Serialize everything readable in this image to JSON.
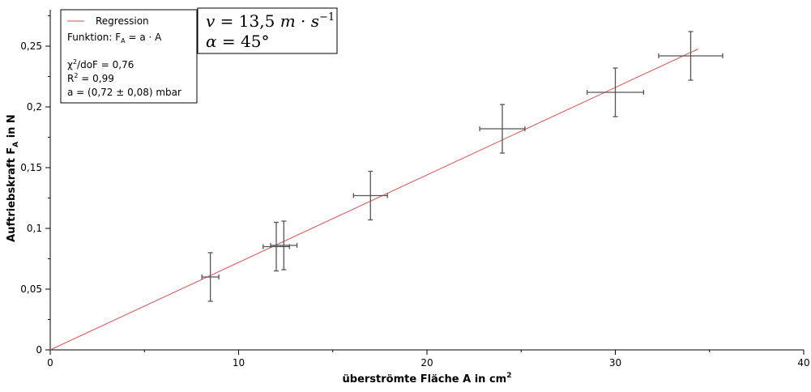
{
  "chart_data": {
    "type": "scatter",
    "xlabel_main": "überströmte Fläche A in cm",
    "xlabel_sup": "2",
    "ylabel_main": "Auftriebskraft F",
    "ylabel_sub": "A",
    "ylabel_tail": " in N",
    "xlim": [
      0,
      40
    ],
    "ylim": [
      0,
      0.28
    ],
    "x_ticks": [
      0,
      10,
      20,
      30,
      40
    ],
    "x_tick_labels": [
      "0",
      "10",
      "20",
      "30",
      "40"
    ],
    "y_ticks": [
      0,
      0.05,
      0.1,
      0.15,
      0.2,
      0.25
    ],
    "y_tick_labels": [
      "0",
      "0,05",
      "0,1",
      "0,15",
      "0,2",
      "0,25"
    ],
    "grid": false,
    "legend_placement": "top-left",
    "points": [
      {
        "x": 8.5,
        "y": 0.06,
        "xerr": 0.45,
        "yerr": 0.02
      },
      {
        "x": 12.0,
        "y": 0.085,
        "xerr": 0.7,
        "yerr": 0.02
      },
      {
        "x": 12.4,
        "y": 0.086,
        "xerr": 0.7,
        "yerr": 0.02
      },
      {
        "x": 17.0,
        "y": 0.127,
        "xerr": 0.9,
        "yerr": 0.02
      },
      {
        "x": 24.0,
        "y": 0.182,
        "xerr": 1.2,
        "yerr": 0.02
      },
      {
        "x": 30.0,
        "y": 0.212,
        "xerr": 1.5,
        "yerr": 0.02
      },
      {
        "x": 34.0,
        "y": 0.242,
        "xerr": 1.7,
        "yerr": 0.02
      }
    ],
    "regression": {
      "slope": 0.0072,
      "x_start": 0,
      "x_end": 34.4
    },
    "colors": {
      "points": "#555555",
      "regression": "#d9534f",
      "axes": "#000000"
    }
  },
  "legend": {
    "series_label": "Regression",
    "function_prefix": "Funktion: F",
    "function_sub": "A",
    "function_suffix": " = a · A",
    "chi_prefix": "χ",
    "chi_sup": "2",
    "chi_suffix": "/doF = 0,76",
    "r_prefix": "R",
    "r_sup": "2",
    "r_suffix": " = 0,99",
    "a_value": "a = (0,72 ± 0,08) mbar"
  },
  "conditions": {
    "v_var": "v",
    "v_eq": " = 13,5 ",
    "v_unit": "m · s",
    "v_exp": "−1",
    "alpha_var": "α",
    "alpha_eq": " = 45°"
  }
}
